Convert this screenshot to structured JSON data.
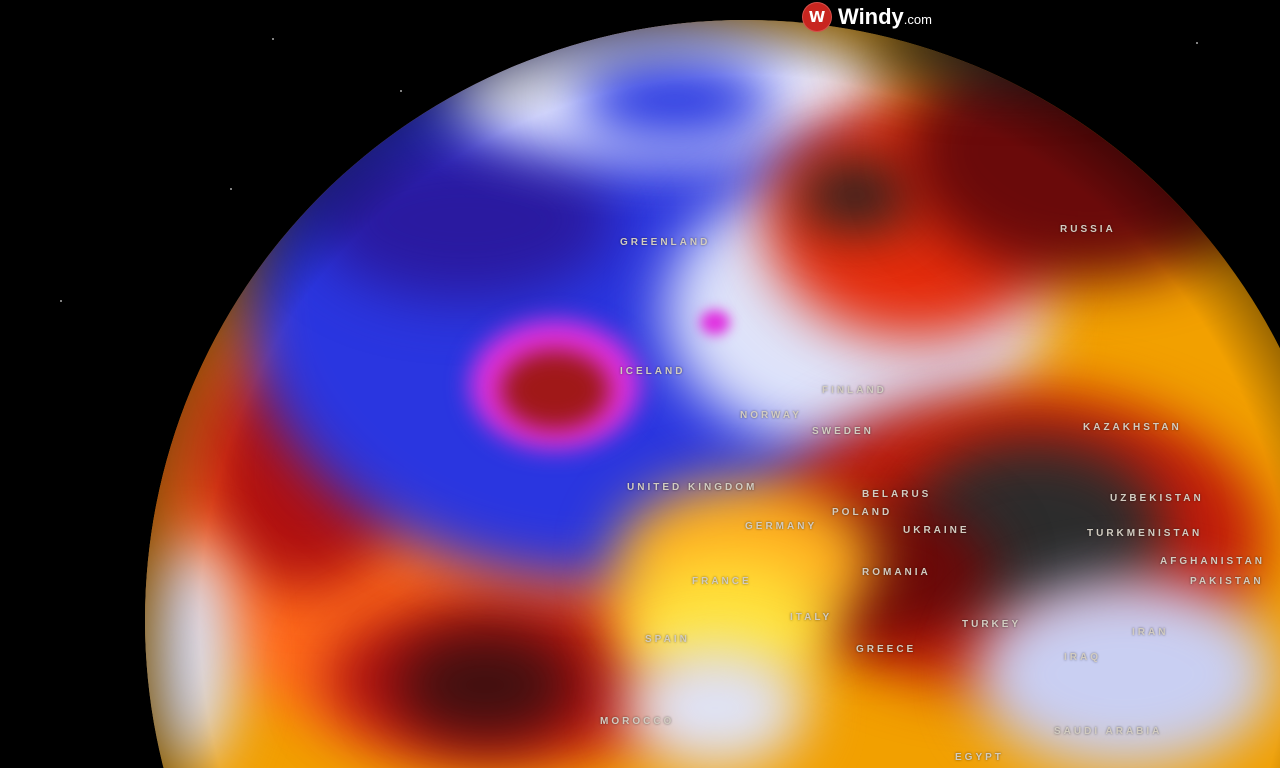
{
  "brand": {
    "name": "Windy",
    "domain": ".com",
    "icon": "windy-logo-icon"
  },
  "map": {
    "type": "globe-temperature-anomaly",
    "colors": {
      "cold_deep": "#1a1acc",
      "cold": "#3a4fe0",
      "neutral": "#e8ecf8",
      "warm": "#ffe23a",
      "hot": "#ff3a10",
      "very_hot": "#7a0a0a",
      "extreme": "#2a2a2a",
      "low_pressure": "#e030e0"
    },
    "labels": [
      {
        "id": "greenland",
        "text": "GREENLAND"
      },
      {
        "id": "russia",
        "text": "RUSSIA"
      },
      {
        "id": "iceland",
        "text": "ICELAND"
      },
      {
        "id": "finland",
        "text": "FINLAND"
      },
      {
        "id": "norway",
        "text": "NORWAY"
      },
      {
        "id": "sweden",
        "text": "SWEDEN"
      },
      {
        "id": "united-kingdom",
        "text": "UNITED KINGDOM"
      },
      {
        "id": "germany",
        "text": "GERMANY"
      },
      {
        "id": "poland",
        "text": "POLAND"
      },
      {
        "id": "belarus",
        "text": "BELARUS"
      },
      {
        "id": "ukraine",
        "text": "UKRAINE"
      },
      {
        "id": "kazakhstan",
        "text": "KAZAKHSTAN"
      },
      {
        "id": "uzbekistan",
        "text": "UZBEKISTAN"
      },
      {
        "id": "turkmenistan",
        "text": "TURKMENISTAN"
      },
      {
        "id": "afghanistan",
        "text": "AFGHANISTAN"
      },
      {
        "id": "pakistan",
        "text": "PAKISTAN"
      },
      {
        "id": "romania",
        "text": "ROMANIA"
      },
      {
        "id": "france",
        "text": "FRANCE"
      },
      {
        "id": "spain",
        "text": "SPAIN"
      },
      {
        "id": "italy",
        "text": "ITALY"
      },
      {
        "id": "greece",
        "text": "GREECE"
      },
      {
        "id": "turkey",
        "text": "TURKEY"
      },
      {
        "id": "iran",
        "text": "IRAN"
      },
      {
        "id": "iraq",
        "text": "IRAQ"
      },
      {
        "id": "saudi-arabia",
        "text": "SAUDI ARABIA"
      },
      {
        "id": "egypt",
        "text": "EGYPT"
      },
      {
        "id": "morocco",
        "text": "MOROCCO"
      }
    ]
  }
}
